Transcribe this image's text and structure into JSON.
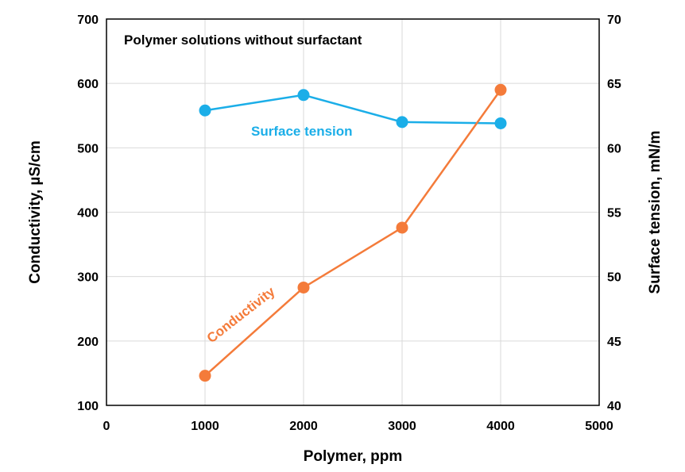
{
  "chart_data": {
    "type": "line",
    "annotation": "Polymer solutions without surfactant",
    "xlabel": "Polymer, ppm",
    "ylabel": "Conductivity, µS/cm",
    "y2label": "Surface tension, mN/m",
    "xlim": [
      0,
      5000
    ],
    "ylim": [
      100,
      700
    ],
    "y2lim": [
      40,
      70
    ],
    "xticks": [
      "0",
      "1000",
      "2000",
      "3000",
      "4000",
      "5000"
    ],
    "yticks": [
      "100",
      "200",
      "300",
      "400",
      "500",
      "600",
      "700"
    ],
    "y2ticks": [
      "40",
      "45",
      "50",
      "55",
      "60",
      "65",
      "70"
    ],
    "grid": true,
    "series": [
      {
        "name": "Surface tension",
        "axis": "right",
        "color": "#1BAEE8",
        "x": [
          1000,
          2000,
          3000,
          4000
        ],
        "y": [
          62.9,
          64.1,
          62.0,
          61.9
        ]
      },
      {
        "name": "Conductivity",
        "axis": "left",
        "color": "#F47B3A",
        "x": [
          1000,
          2000,
          3000,
          4000
        ],
        "y": [
          146,
          283,
          376,
          590
        ]
      }
    ]
  }
}
